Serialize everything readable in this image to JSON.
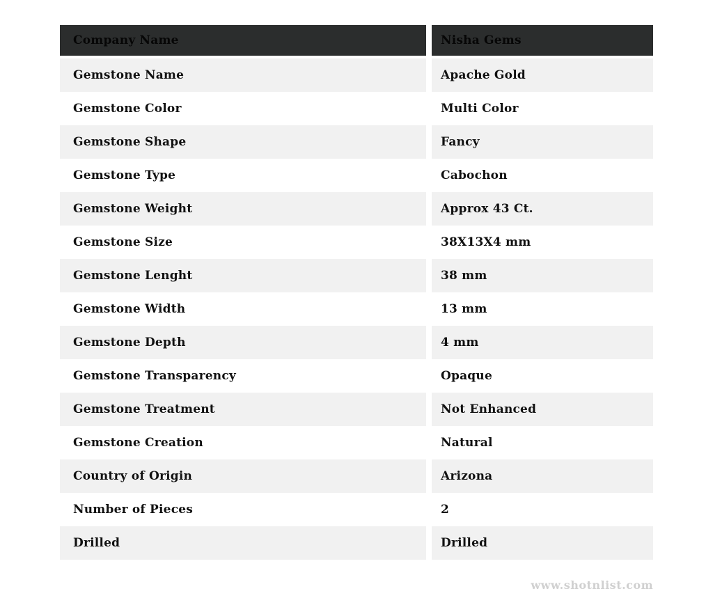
{
  "table": {
    "header": {
      "label": "Company Name",
      "value": "Nisha Gems"
    },
    "rows": [
      {
        "label": "Gemstone Name",
        "value": "Apache Gold"
      },
      {
        "label": "Gemstone Color",
        "value": "Multi Color"
      },
      {
        "label": "Gemstone Shape",
        "value": "Fancy"
      },
      {
        "label": "Gemstone Type",
        "value": "Cabochon"
      },
      {
        "label": "Gemstone Weight",
        "value": "Approx 43 Ct."
      },
      {
        "label": "Gemstone Size",
        "value": "38X13X4 mm"
      },
      {
        "label": "Gemstone Lenght",
        "value": "38 mm"
      },
      {
        "label": "Gemstone Width",
        "value": "13 mm"
      },
      {
        "label": "Gemstone Depth",
        "value": "4 mm"
      },
      {
        "label": "Gemstone Transparency",
        "value": "Opaque"
      },
      {
        "label": "Gemstone Treatment",
        "value": "Not Enhanced"
      },
      {
        "label": "Gemstone Creation",
        "value": "Natural"
      },
      {
        "label": "Country of Origin",
        "value": "Arizona"
      },
      {
        "label": "Number of Pieces",
        "value": "2"
      },
      {
        "label": "Drilled",
        "value": "Drilled"
      }
    ]
  },
  "footer": {
    "watermark": "www.shotnlist.com"
  },
  "colors": {
    "header_bg": "#2b2d2d",
    "header_text": "#060606",
    "row_alt_bg": "#f1f1f1",
    "row_bg": "#ffffff",
    "cell_text": "#111111",
    "watermark_text": "#d0d0d0",
    "page_bg": "#ffffff"
  }
}
